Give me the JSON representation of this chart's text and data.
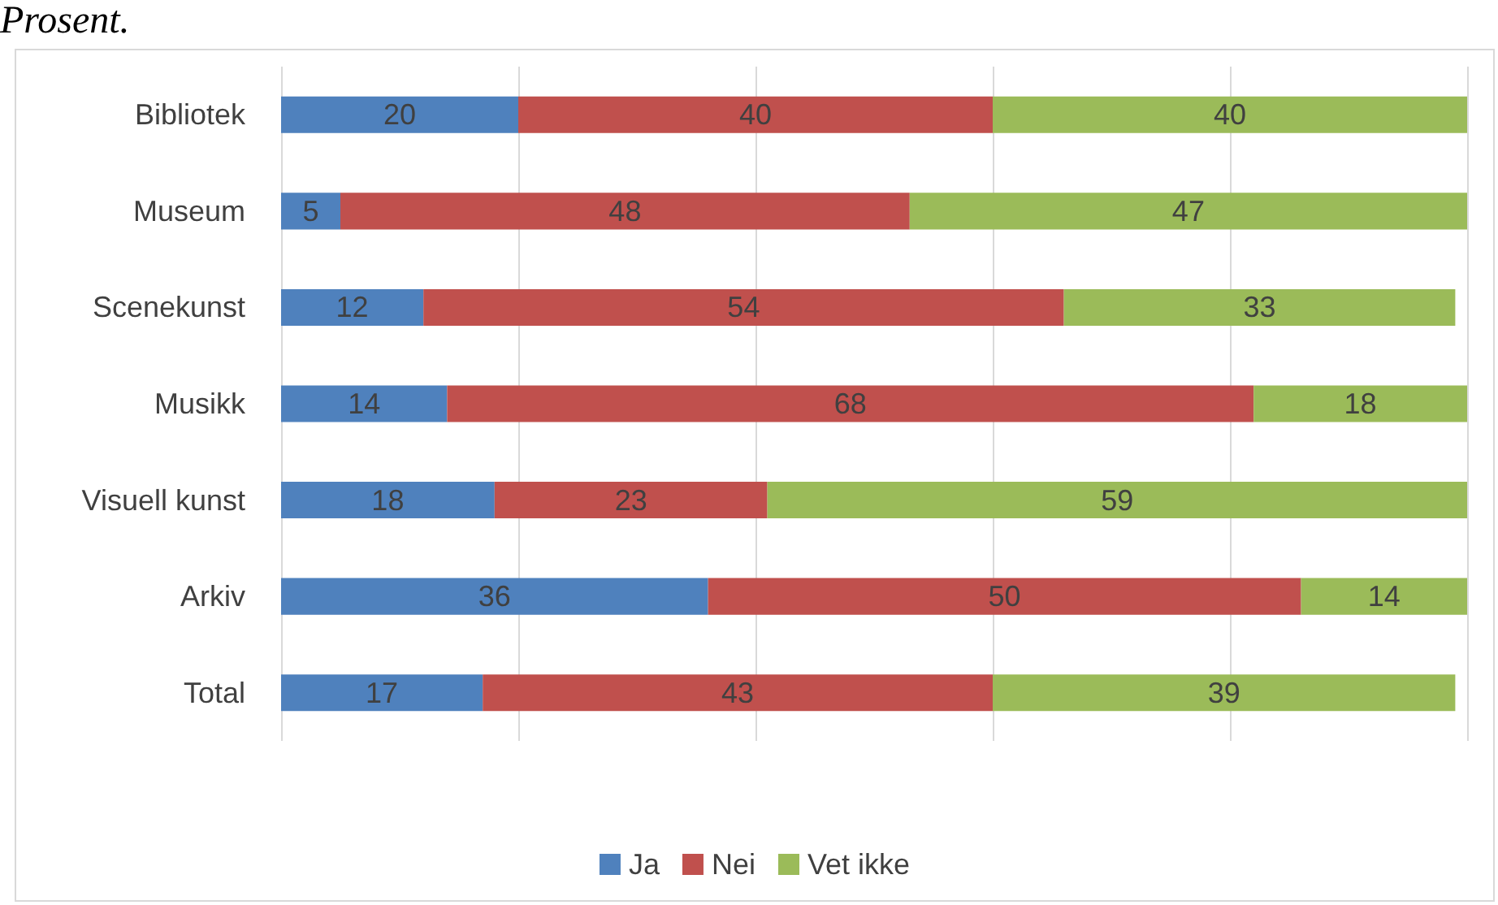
{
  "chart_data": {
    "type": "bar",
    "orientation": "horizontal",
    "stacked": true,
    "title": "Prosent.",
    "categories": [
      "Bibliotek",
      "Museum",
      "Scenekunst",
      "Musikk",
      "Visuell kunst",
      "Arkiv",
      "Total"
    ],
    "series": [
      {
        "name": "Ja",
        "color": "#4f81bd",
        "values": [
          20,
          5,
          12,
          14,
          18,
          36,
          17
        ]
      },
      {
        "name": "Nei",
        "color": "#c0504d",
        "values": [
          40,
          48,
          54,
          68,
          23,
          50,
          43
        ]
      },
      {
        "name": "Vet ikke",
        "color": "#9bbb59",
        "values": [
          40,
          47,
          33,
          18,
          59,
          14,
          39
        ]
      }
    ],
    "xlim": [
      0,
      100
    ],
    "xticks": [
      {
        "value": 0,
        "label": null
      },
      {
        "value": 20,
        "label": null
      },
      {
        "value": 40,
        "label": null
      },
      {
        "value": 60,
        "label": null
      },
      {
        "value": 80,
        "label": null
      },
      {
        "value": 100,
        "label": null
      }
    ],
    "tick_labels": "y",
    "grid": "x",
    "legend": "bottom",
    "data_labels": true
  }
}
